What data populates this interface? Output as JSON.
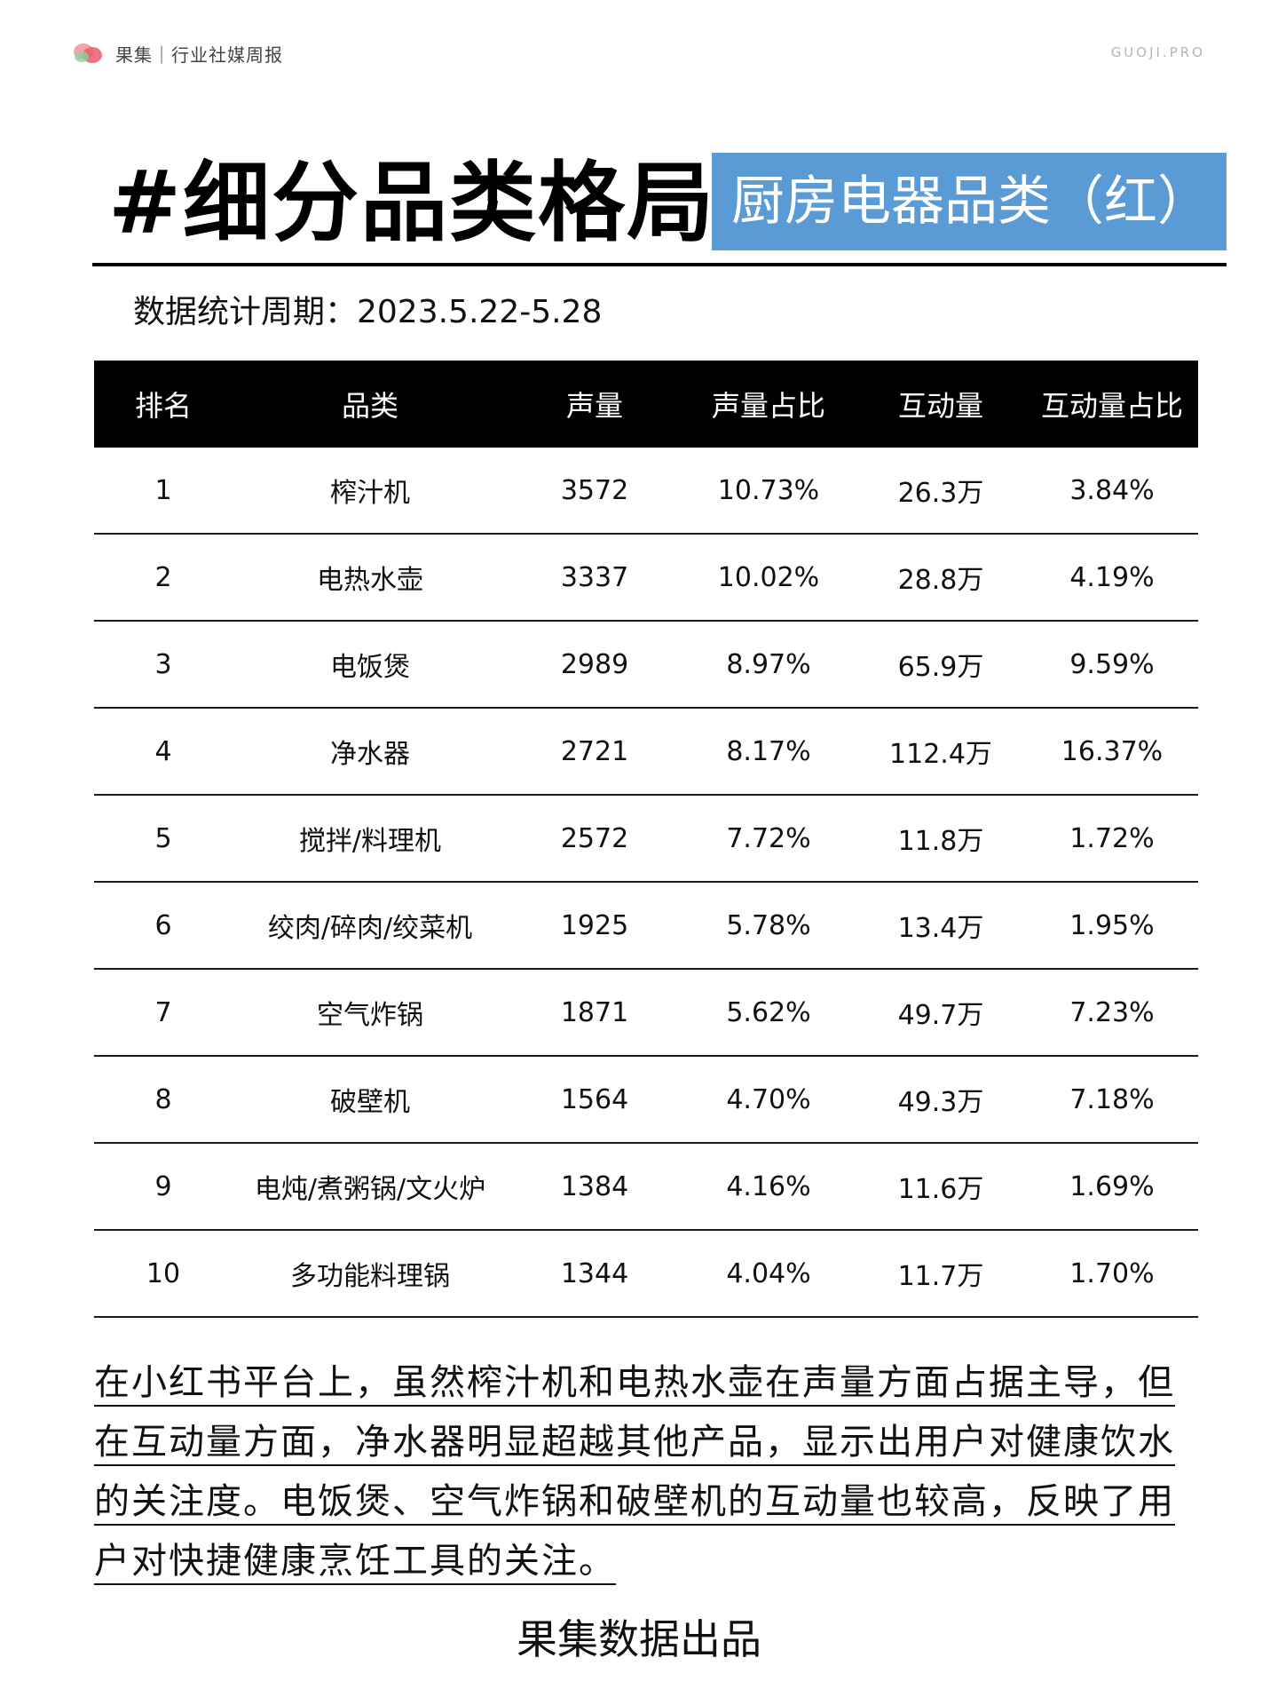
{
  "header": {
    "brand": "果集｜行业社媒周报",
    "site": "GUOJI.PRO",
    "logo_icon": "fruit-logo-icon"
  },
  "title": {
    "main": "#细分品类格局",
    "tag": "厨房电器品类（红）",
    "tag_color": "#5a9bd5"
  },
  "period": "数据统计周期：2023.5.22-5.28",
  "table": {
    "headers": [
      "排名",
      "品类",
      "声量",
      "声量占比",
      "互动量",
      "互动量占比"
    ],
    "rows": [
      [
        "1",
        "榨汁机",
        "3572",
        "10.73%",
        "26.3万",
        "3.84%"
      ],
      [
        "2",
        "电热水壶",
        "3337",
        "10.02%",
        "28.8万",
        "4.19%"
      ],
      [
        "3",
        "电饭煲",
        "2989",
        "8.97%",
        "65.9万",
        "9.59%"
      ],
      [
        "4",
        "净水器",
        "2721",
        "8.17%",
        "112.4万",
        "16.37%"
      ],
      [
        "5",
        "搅拌/料理机",
        "2572",
        "7.72%",
        "11.8万",
        "1.72%"
      ],
      [
        "6",
        "绞肉/碎肉/绞菜机",
        "1925",
        "5.78%",
        "13.4万",
        "1.95%"
      ],
      [
        "7",
        "空气炸锅",
        "1871",
        "5.62%",
        "49.7万",
        "7.23%"
      ],
      [
        "8",
        "破壁机",
        "1564",
        "4.70%",
        "49.3万",
        "7.18%"
      ],
      [
        "9",
        "电炖/煮粥锅/文火炉",
        "1384",
        "4.16%",
        "11.6万",
        "1.69%"
      ],
      [
        "10",
        "多功能料理锅",
        "1344",
        "4.04%",
        "11.7万",
        "1.70%"
      ]
    ]
  },
  "summary": "在小红书平台上，虽然榨汁机和电热水壶在声量方面占据主导，但在互动量方面，净水器明显超越其他产品，显示出用户对健康饮水的关注度。电饭煲、空气炸锅和破壁机的互动量也较高，反映了用户对快捷健康烹饪工具的关注。",
  "footer": "果集数据出品"
}
